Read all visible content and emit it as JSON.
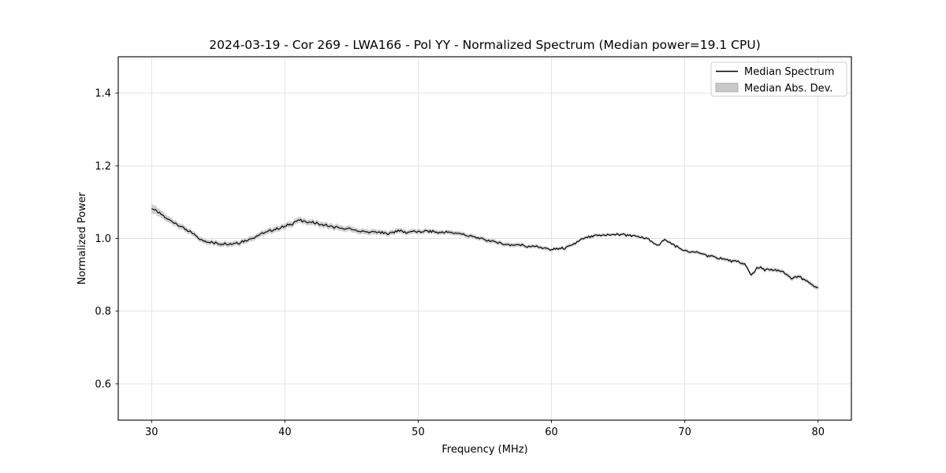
{
  "chart_data": {
    "type": "line",
    "title": "2024-03-19 - Cor 269 - LWA166 - Pol YY - Normalized Spectrum (Median power=19.1 CPU)",
    "xlabel": "Frequency (MHz)",
    "ylabel": "Normalized Power",
    "xlim": [
      27.5,
      82.5
    ],
    "ylim": [
      0.5,
      1.5
    ],
    "xticks": [
      30,
      40,
      50,
      60,
      70,
      80
    ],
    "xtick_labels": [
      "30",
      "40",
      "50",
      "60",
      "70",
      "80"
    ],
    "yticks": [
      0.6,
      0.8,
      1.0,
      1.2,
      1.4
    ],
    "ytick_labels": [
      "0.6",
      "0.8",
      "1.0",
      "1.2",
      "1.4"
    ],
    "grid": true,
    "legend_position": "upper right",
    "legend": [
      {
        "label": "Median Spectrum",
        "marker": "line",
        "color": "#000000"
      },
      {
        "label": "Median Abs. Dev.",
        "marker": "patch",
        "color": "#c8c8c8"
      }
    ],
    "series": [
      {
        "name": "Median Spectrum",
        "x": [
          30.0,
          30.5,
          31.0,
          31.5,
          32.0,
          32.5,
          33.0,
          33.5,
          34.0,
          34.5,
          35.0,
          35.5,
          36.0,
          36.5,
          37.0,
          37.5,
          38.0,
          38.5,
          39.0,
          39.5,
          40.0,
          40.5,
          41.0,
          41.5,
          42.0,
          42.5,
          43.0,
          43.5,
          44.0,
          44.5,
          45.0,
          45.5,
          46.0,
          46.5,
          47.0,
          47.5,
          48.0,
          48.5,
          49.0,
          49.5,
          50.0,
          50.5,
          51.0,
          51.5,
          52.0,
          52.5,
          53.0,
          53.5,
          54.0,
          54.5,
          55.0,
          55.5,
          56.0,
          56.5,
          57.0,
          57.5,
          58.0,
          58.5,
          59.0,
          59.5,
          60.0,
          60.5,
          61.0,
          61.5,
          62.0,
          62.5,
          63.0,
          63.5,
          64.0,
          64.5,
          65.0,
          65.5,
          66.0,
          66.5,
          67.0,
          67.5,
          68.0,
          68.5,
          69.0,
          69.5,
          70.0,
          70.5,
          71.0,
          71.5,
          72.0,
          72.5,
          73.0,
          73.5,
          74.0,
          74.5,
          75.0,
          75.5,
          76.0,
          76.5,
          77.0,
          77.5,
          78.0,
          78.5,
          79.0,
          79.5,
          80.0
        ],
        "values": [
          1.085,
          1.072,
          1.058,
          1.048,
          1.038,
          1.027,
          1.015,
          1.002,
          0.992,
          0.988,
          0.986,
          0.987,
          0.985,
          0.988,
          0.994,
          1.0,
          1.008,
          1.016,
          1.022,
          1.028,
          1.033,
          1.04,
          1.05,
          1.046,
          1.044,
          1.041,
          1.037,
          1.032,
          1.029,
          1.027,
          1.025,
          1.021,
          1.019,
          1.017,
          1.018,
          1.014,
          1.016,
          1.022,
          1.017,
          1.019,
          1.017,
          1.019,
          1.019,
          1.017,
          1.017,
          1.015,
          1.014,
          1.01,
          1.005,
          1.001,
          0.997,
          0.993,
          0.989,
          0.985,
          0.981,
          0.985,
          0.978,
          0.977,
          0.978,
          0.973,
          0.969,
          0.972,
          0.974,
          0.98,
          0.992,
          1.0,
          1.005,
          1.008,
          1.01,
          1.01,
          1.012,
          1.01,
          1.008,
          1.004,
          1.0,
          0.995,
          0.978,
          1.0,
          0.985,
          0.975,
          0.966,
          0.963,
          0.96,
          0.956,
          0.95,
          0.947,
          0.942,
          0.938,
          0.935,
          0.93,
          0.9,
          0.92,
          0.915,
          0.912,
          0.912,
          0.905,
          0.89,
          0.896,
          0.885,
          0.875,
          0.863
        ]
      }
    ],
    "mad_band": {
      "name": "Median Abs. Dev.",
      "x": [
        30,
        30.5,
        31,
        32,
        34,
        37,
        40,
        44,
        48,
        52,
        56,
        60,
        64,
        68,
        72,
        76,
        80
      ],
      "mad": [
        0.013,
        0.011,
        0.009,
        0.008,
        0.007,
        0.007,
        0.008,
        0.008,
        0.007,
        0.006,
        0.006,
        0.005,
        0.0045,
        0.004,
        0.005,
        0.0055,
        0.006
      ]
    },
    "noise_amplitude": 0.0035,
    "noise_seed": 7,
    "colors": {
      "line": "#000000",
      "band": "#c8c8c8",
      "grid": "#e0e0e0",
      "spine": "#000000",
      "background": "#ffffff"
    }
  }
}
